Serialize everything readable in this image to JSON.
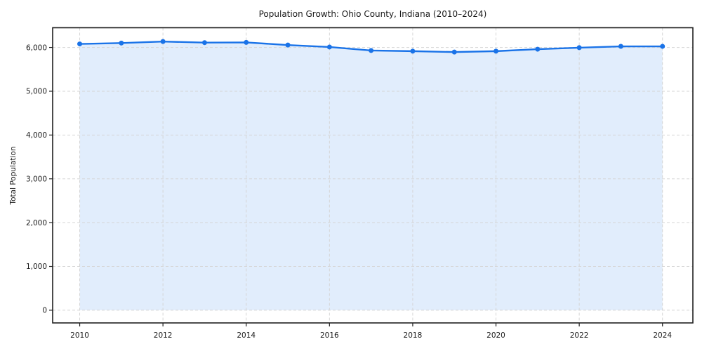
{
  "chart_data": {
    "type": "area",
    "title": "Population Growth: Ohio County, Indiana (2010–2024)",
    "xlabel": "",
    "ylabel": "Total Population",
    "x": [
      2010,
      2011,
      2012,
      2013,
      2014,
      2015,
      2016,
      2017,
      2018,
      2019,
      2020,
      2021,
      2022,
      2023,
      2024
    ],
    "series": [
      {
        "name": "Total Population",
        "values": [
          6080,
          6100,
          6135,
          6110,
          6115,
          6055,
          6010,
          5930,
          5915,
          5895,
          5915,
          5960,
          5995,
          6025,
          6025
        ]
      }
    ],
    "xticks": [
      2010,
      2012,
      2014,
      2016,
      2018,
      2020,
      2022,
      2024
    ],
    "xtick_labels": [
      "2010",
      "2012",
      "2014",
      "2016",
      "2018",
      "2020",
      "2022",
      "2024"
    ],
    "yticks": [
      0,
      1000,
      2000,
      3000,
      4000,
      5000,
      6000
    ],
    "ytick_labels": [
      "0",
      "1,000",
      "2,000",
      "3,000",
      "4,000",
      "5,000",
      "6,000"
    ],
    "xlim": [
      2009.35,
      2024.73
    ],
    "ylim": [
      -290,
      6450
    ],
    "grid": true,
    "grid_style": "dashed",
    "legend_position": "none",
    "marker": "circle",
    "colors": {
      "line": "#1a73e8",
      "marker": "#1a73e8",
      "fill": "#1a73e8",
      "fill_opacity": 0.13,
      "grid": "#d5d5d5",
      "spine": "#1f1f1f",
      "tick_text": "#1a1a1a",
      "background": "#ffffff"
    }
  }
}
